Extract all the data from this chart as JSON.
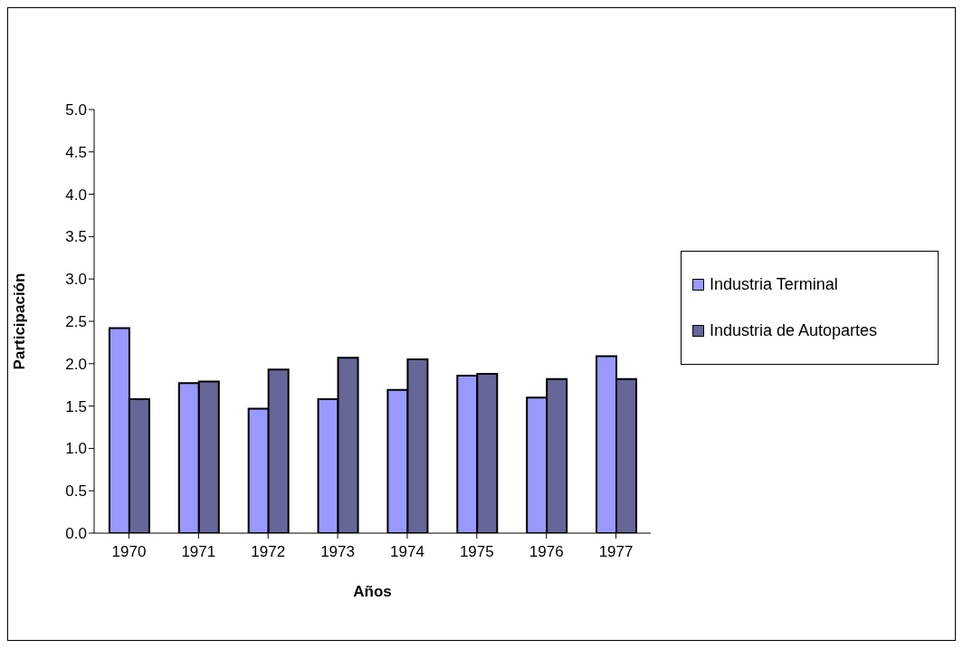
{
  "chart_data": {
    "type": "bar",
    "xlabel": "Años",
    "ylabel": "Participación",
    "categories": [
      "1970",
      "1971",
      "1972",
      "1973",
      "1974",
      "1975",
      "1976",
      "1977"
    ],
    "series": [
      {
        "name": "Industria Terminal",
        "color": "#9999ff",
        "values": [
          2.42,
          1.77,
          1.47,
          1.58,
          1.69,
          1.86,
          1.6,
          2.09
        ]
      },
      {
        "name": "Industria de Autopartes",
        "color": "#666699",
        "values": [
          1.58,
          1.79,
          1.93,
          2.07,
          2.05,
          1.88,
          1.82,
          1.82
        ]
      }
    ],
    "ylim": [
      0,
      5
    ],
    "yticks": [
      {
        "value": 0,
        "label": "0.0"
      },
      {
        "value": 0.5,
        "label": "0.5"
      },
      {
        "value": 1,
        "label": "1.0"
      },
      {
        "value": 1.5,
        "label": "1.5"
      },
      {
        "value": 2,
        "label": "2.0"
      },
      {
        "value": 2.5,
        "label": "2.5"
      },
      {
        "value": 3,
        "label": "3.0"
      },
      {
        "value": 3.5,
        "label": "3.5"
      },
      {
        "value": 4,
        "label": "4.0"
      },
      {
        "value": 4.5,
        "label": "4.5"
      },
      {
        "value": 5,
        "label": "5.0"
      }
    ],
    "grid": false,
    "legend": "right"
  }
}
